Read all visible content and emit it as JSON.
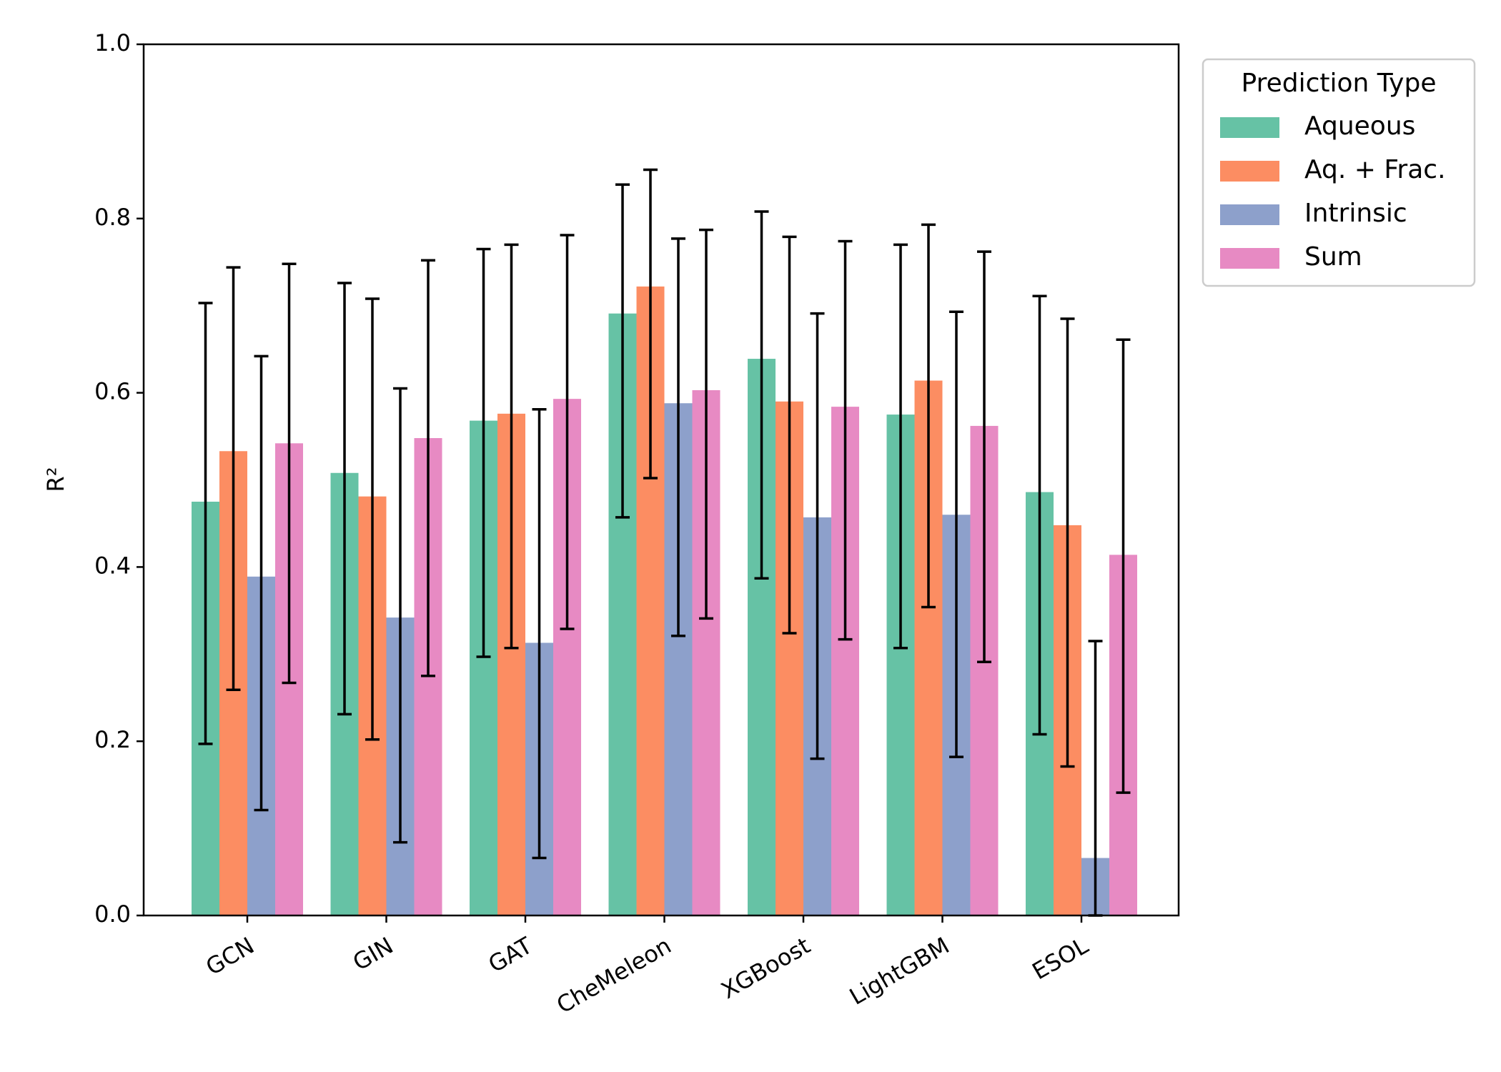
{
  "chart_data": {
    "type": "bar",
    "title": "",
    "xlabel": "",
    "ylabel": "R²",
    "ylim": [
      0,
      1.0
    ],
    "yticks": [
      "0.0",
      "0.2",
      "0.4",
      "0.6",
      "0.8",
      "1.0"
    ],
    "categories": [
      "GCN",
      "GIN",
      "GAT",
      "CheMeleon",
      "XGBoost",
      "LightGBM",
      "ESOL"
    ],
    "series": [
      {
        "name": "Aqueous",
        "color": "#66c2a5",
        "values": [
          0.475,
          0.508,
          0.568,
          0.691,
          0.639,
          0.575,
          0.486
        ],
        "err_low": [
          0.197,
          0.231,
          0.297,
          0.457,
          0.387,
          0.307,
          0.208
        ],
        "err_high": [
          0.703,
          0.726,
          0.765,
          0.839,
          0.808,
          0.77,
          0.711
        ]
      },
      {
        "name": "Aq. + Frac.",
        "color": "#fc8d62",
        "values": [
          0.533,
          0.481,
          0.576,
          0.722,
          0.59,
          0.614,
          0.448
        ],
        "err_low": [
          0.259,
          0.202,
          0.307,
          0.502,
          0.324,
          0.354,
          0.171
        ],
        "err_high": [
          0.744,
          0.708,
          0.77,
          0.856,
          0.779,
          0.793,
          0.685
        ]
      },
      {
        "name": "Intrinsic",
        "color": "#8da0cb",
        "values": [
          0.389,
          0.342,
          0.313,
          0.588,
          0.457,
          0.46,
          0.066
        ],
        "err_low": [
          0.121,
          0.084,
          0.066,
          0.321,
          0.18,
          0.182,
          0.0
        ],
        "err_high": [
          0.642,
          0.605,
          0.581,
          0.777,
          0.691,
          0.693,
          0.315
        ]
      },
      {
        "name": "Sum",
        "color": "#e78ac3",
        "values": [
          0.542,
          0.548,
          0.593,
          0.603,
          0.584,
          0.562,
          0.414
        ],
        "err_low": [
          0.267,
          0.275,
          0.329,
          0.341,
          0.317,
          0.291,
          0.141
        ],
        "err_high": [
          0.748,
          0.752,
          0.781,
          0.787,
          0.774,
          0.762,
          0.661
        ]
      }
    ],
    "legend": {
      "title": "Prediction Type",
      "position": "outside-right"
    },
    "grid": false
  }
}
